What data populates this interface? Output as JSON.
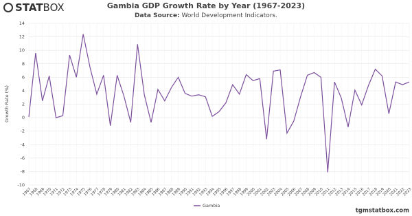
{
  "brand": {
    "bold": "STAT",
    "light": "BOX"
  },
  "footer": "tgmstatbox.com",
  "chart_data": {
    "type": "line",
    "title": "Gambia GDP Growth Rate by Year (1967-2023)",
    "subtitle_label": "Data Source:",
    "subtitle": "World Development Indicators.",
    "y_label": "Growth Rate (%)",
    "x": [
      1967,
      1968,
      1969,
      1970,
      1971,
      1972,
      1973,
      1974,
      1975,
      1976,
      1977,
      1978,
      1979,
      1980,
      1981,
      1982,
      1983,
      1984,
      1985,
      1986,
      1987,
      1988,
      1989,
      1990,
      1991,
      1992,
      1993,
      1994,
      1995,
      1996,
      1997,
      1998,
      1999,
      2000,
      2001,
      2002,
      2003,
      2004,
      2005,
      2006,
      2007,
      2008,
      2009,
      2010,
      2011,
      2012,
      2013,
      2014,
      2015,
      2016,
      2017,
      2018,
      2019,
      2020,
      2021,
      2022,
      2023
    ],
    "xlim": [
      1967,
      2023
    ],
    "series": [
      {
        "name": "Gambia",
        "color": "#7b4f9d",
        "values": [
          0.1,
          9.6,
          2.5,
          6.2,
          0.0,
          0.3,
          9.3,
          6.0,
          12.4,
          7.5,
          3.5,
          6.3,
          -1.2,
          6.3,
          3.2,
          -0.7,
          10.9,
          3.4,
          -0.7,
          4.2,
          2.5,
          4.5,
          6.0,
          3.6,
          3.2,
          3.4,
          3.1,
          0.2,
          0.9,
          2.2,
          4.9,
          3.5,
          6.4,
          5.5,
          5.8,
          -3.2,
          6.9,
          7.1,
          -2.3,
          -0.5,
          3.1,
          6.3,
          6.7,
          6.0,
          -8.1,
          5.3,
          2.9,
          -1.4,
          4.1,
          1.9,
          4.8,
          7.2,
          6.2,
          0.6,
          5.3,
          4.9,
          5.3
        ]
      }
    ],
    "ylim": [
      -10,
      14
    ],
    "yticks": [
      -10,
      -8,
      -6,
      -4,
      -2,
      0,
      2,
      4,
      6,
      8,
      10,
      12,
      14
    ],
    "grid": true
  }
}
